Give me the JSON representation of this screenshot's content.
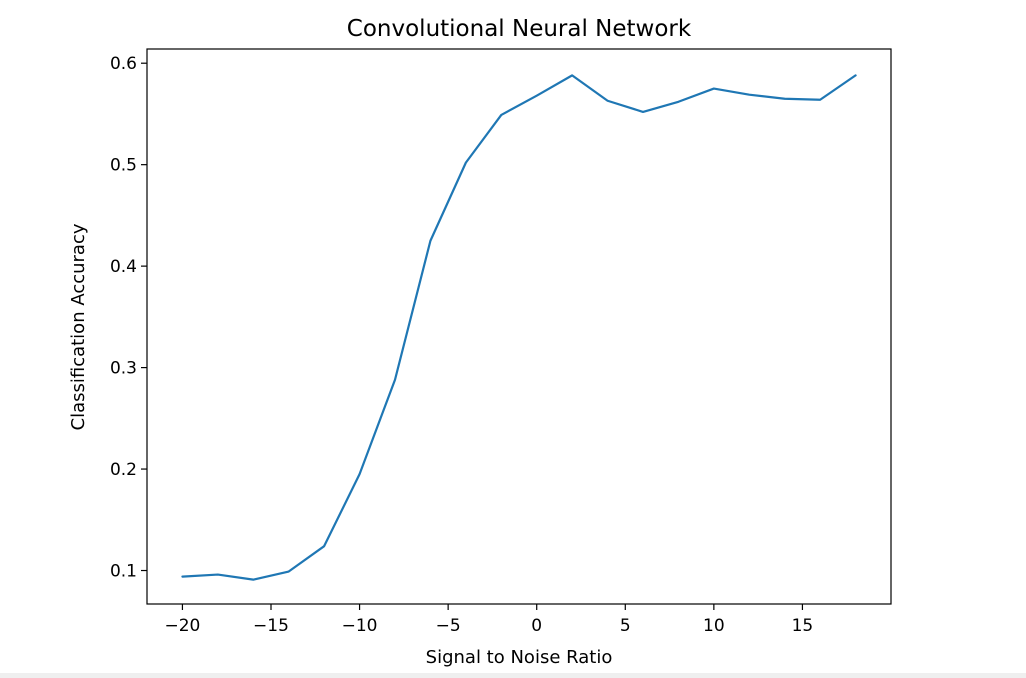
{
  "chart_data": {
    "type": "line",
    "title": "Convolutional Neural Network",
    "xlabel": "Signal to Noise Ratio",
    "ylabel": "Classification Accuracy",
    "xlim": [
      -22,
      20
    ],
    "ylim": [
      0.067,
      0.614
    ],
    "xticks": [
      -20,
      -15,
      -10,
      -5,
      0,
      5,
      10,
      15
    ],
    "xtick_labels": [
      "−20",
      "−15",
      "−10",
      "−5",
      "0",
      "5",
      "10",
      "15"
    ],
    "yticks": [
      0.1,
      0.2,
      0.3,
      0.4,
      0.5,
      0.6
    ],
    "ytick_labels": [
      "0.1",
      "0.2",
      "0.3",
      "0.4",
      "0.5",
      "0.6"
    ],
    "grid": false,
    "series": [
      {
        "color": "#1f77b4",
        "x": [
          -20,
          -18,
          -16,
          -14,
          -12,
          -10,
          -8,
          -6,
          -4,
          -2,
          0,
          2,
          4,
          6,
          8,
          10,
          12,
          14,
          16,
          18
        ],
        "y": [
          0.094,
          0.096,
          0.091,
          0.099,
          0.124,
          0.195,
          0.288,
          0.425,
          0.502,
          0.549,
          0.568,
          0.588,
          0.563,
          0.552,
          0.562,
          0.575,
          0.569,
          0.565,
          0.564,
          0.588
        ]
      }
    ]
  }
}
